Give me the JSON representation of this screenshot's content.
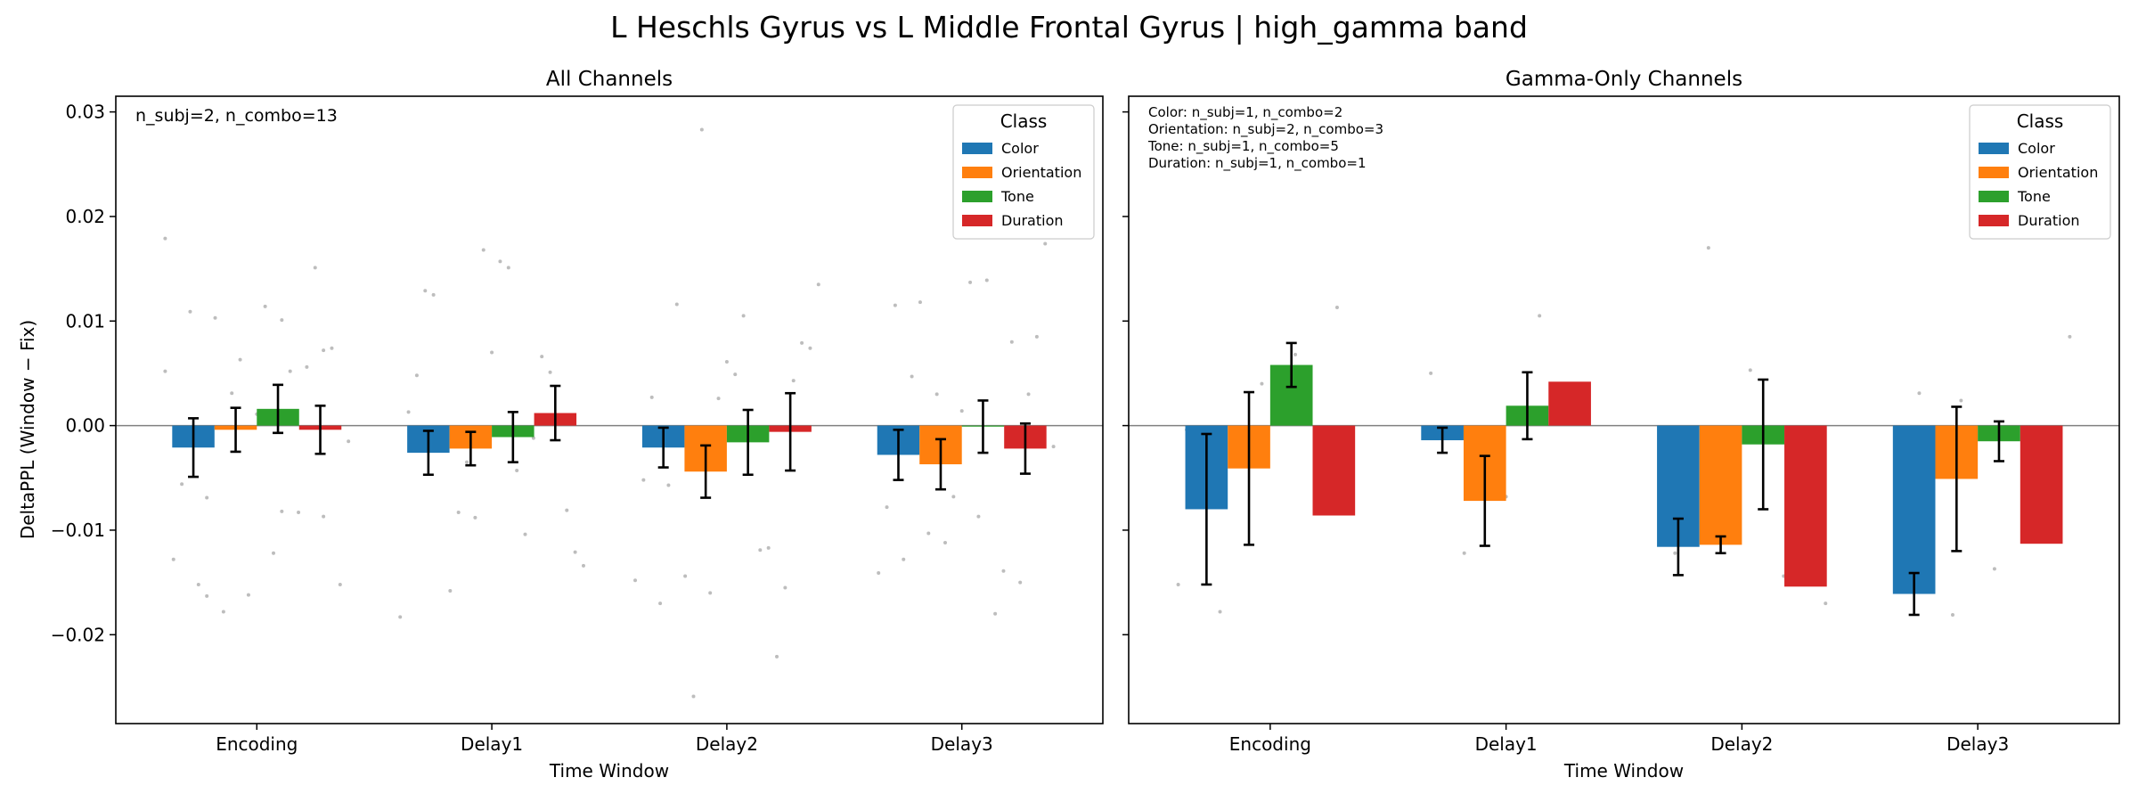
{
  "figure": {
    "suptitle": "L Heschls Gyrus vs L Middle Frontal Gyrus  |  high_gamma band",
    "ylabel": "DeltaPPL (Window − Fix)"
  },
  "chart_data": [
    {
      "type": "bar",
      "title": "All Channels",
      "xlabel": "Time Window",
      "ylabel": "DeltaPPL (Window − Fix)",
      "ylim": [
        -0.0285,
        0.0315
      ],
      "yticks": [
        -0.02,
        -0.01,
        0.0,
        0.01,
        0.02,
        0.03
      ],
      "ytick_labels": [
        "−0.02",
        "−0.01",
        "0.00",
        "0.01",
        "0.02",
        "0.03"
      ],
      "categories": [
        "Encoding",
        "Delay1",
        "Delay2",
        "Delay3"
      ],
      "grid": false,
      "zero_line": true,
      "legend_title": "Class",
      "legend_position": "top-right",
      "annotation": [
        "n_subj=2, n_combo=13"
      ],
      "series": [
        {
          "name": "Color",
          "color": "#1f77b4",
          "values": [
            -0.0021,
            -0.0026,
            -0.0021,
            -0.0028
          ],
          "errors": [
            0.0028,
            0.0021,
            0.0019,
            0.0024
          ]
        },
        {
          "name": "Orientation",
          "color": "#ff7f0e",
          "values": [
            -0.0004,
            -0.0022,
            -0.0044,
            -0.0037
          ],
          "errors": [
            0.0021,
            0.0016,
            0.0025,
            0.0024
          ]
        },
        {
          "name": "Tone",
          "color": "#2ca02c",
          "values": [
            0.0016,
            -0.0011,
            -0.0016,
            -0.0001
          ],
          "errors": [
            0.0023,
            0.0024,
            0.0031,
            0.0025
          ]
        },
        {
          "name": "Duration",
          "color": "#d62728",
          "values": [
            -0.0004,
            0.0012,
            -0.0006,
            -0.0022
          ],
          "errors": [
            0.0023,
            0.0026,
            0.0037,
            0.0024
          ]
        }
      ],
      "scatter_points": [
        [
          0,
          0.0179
        ],
        [
          0,
          0.0101
        ],
        [
          0,
          -0.0069
        ],
        [
          0,
          -0.0087
        ],
        [
          0,
          -0.0162
        ],
        [
          0,
          -0.0128
        ],
        [
          0,
          0.0052
        ],
        [
          0,
          0.0103
        ],
        [
          0,
          0.0074
        ],
        [
          0,
          0.0011
        ],
        [
          0,
          -0.0056
        ],
        [
          0,
          -0.0083
        ],
        [
          0,
          -0.0178
        ],
        [
          0,
          -0.0152
        ],
        [
          0,
          0.0114
        ],
        [
          0,
          0.0109
        ],
        [
          0,
          0.0056
        ],
        [
          0,
          0.0031
        ],
        [
          0,
          -0.0015
        ],
        [
          0,
          -0.0122
        ],
        [
          0,
          -0.0152
        ],
        [
          0,
          0.0151
        ],
        [
          0,
          0.0063
        ],
        [
          0,
          0.0052
        ],
        [
          0,
          -0.0082
        ],
        [
          0,
          -0.0163
        ],
        [
          0,
          0.0072
        ],
        [
          1,
          0.0168
        ],
        [
          1,
          0.0013
        ],
        [
          1,
          -0.0104
        ],
        [
          1,
          -0.0158
        ],
        [
          1,
          -0.0081
        ],
        [
          1,
          0.007
        ],
        [
          1,
          0.0048
        ],
        [
          1,
          -0.0012
        ],
        [
          1,
          -0.0083
        ],
        [
          1,
          -0.0121
        ],
        [
          1,
          0.0157
        ],
        [
          1,
          0.0129
        ],
        [
          1,
          0.0066
        ],
        [
          1,
          -0.0035
        ],
        [
          1,
          -0.0134
        ],
        [
          1,
          0.0151
        ],
        [
          1,
          0.0125
        ],
        [
          1,
          0.0051
        ],
        [
          1,
          -0.0088
        ],
        [
          1,
          -0.0183
        ],
        [
          1,
          -0.0043
        ],
        [
          2,
          0.0116
        ],
        [
          2,
          0.0043
        ],
        [
          2,
          0.0026
        ],
        [
          2,
          -0.0052
        ],
        [
          2,
          -0.0119
        ],
        [
          2,
          -0.0144
        ],
        [
          2,
          0.0079
        ],
        [
          2,
          0.0061
        ],
        [
          2,
          0.0027
        ],
        [
          2,
          -0.0117
        ],
        [
          2,
          -0.0259
        ],
        [
          2,
          0.0074
        ],
        [
          2,
          0.0049
        ],
        [
          2,
          -0.017
        ],
        [
          2,
          -0.0221
        ],
        [
          2,
          0.0283
        ],
        [
          2,
          0.0135
        ],
        [
          2,
          0.0105
        ],
        [
          2,
          -0.0057
        ],
        [
          2,
          -0.0155
        ],
        [
          2,
          -0.016
        ],
        [
          2,
          -0.0148
        ],
        [
          3,
          0.0139
        ],
        [
          3,
          0.0047
        ],
        [
          3,
          0.003
        ],
        [
          3,
          -0.0068
        ],
        [
          3,
          -0.0141
        ],
        [
          3,
          -0.018
        ],
        [
          3,
          0.0118
        ],
        [
          3,
          0.0085
        ],
        [
          3,
          0.0014
        ],
        [
          3,
          -0.0078
        ],
        [
          3,
          -0.0139
        ],
        [
          3,
          -0.0103
        ],
        [
          3,
          0.0174
        ],
        [
          3,
          0.0137
        ],
        [
          3,
          0.0115
        ],
        [
          3,
          0.008
        ],
        [
          3,
          0.003
        ],
        [
          3,
          -0.002
        ],
        [
          3,
          -0.0087
        ],
        [
          3,
          -0.0128
        ],
        [
          3,
          -0.015
        ],
        [
          3,
          -0.0112
        ]
      ]
    },
    {
      "type": "bar",
      "title": "Gamma-Only Channels",
      "xlabel": "Time Window",
      "ylim": [
        -0.0285,
        0.0315
      ],
      "categories": [
        "Encoding",
        "Delay1",
        "Delay2",
        "Delay3"
      ],
      "grid": false,
      "zero_line": true,
      "legend_title": "Class",
      "legend_position": "top-right",
      "annotation": [
        "Color: n_subj=1, n_combo=2",
        "Orientation: n_subj=2, n_combo=3",
        "Tone: n_subj=1, n_combo=5",
        "Duration: n_subj=1, n_combo=1"
      ],
      "series": [
        {
          "name": "Color",
          "color": "#1f77b4",
          "values": [
            -0.008,
            -0.0014,
            -0.0116,
            -0.0161
          ],
          "errors": [
            0.0072,
            0.0012,
            0.0027,
            0.002
          ]
        },
        {
          "name": "Orientation",
          "color": "#ff7f0e",
          "values": [
            -0.0041,
            -0.0072,
            -0.0114,
            -0.0051
          ],
          "errors": [
            0.0073,
            0.0043,
            0.0008,
            0.0069
          ]
        },
        {
          "name": "Tone",
          "color": "#2ca02c",
          "values": [
            0.0058,
            0.0019,
            -0.0018,
            -0.0015
          ],
          "errors": [
            0.0021,
            0.0032,
            0.0062,
            0.0019
          ]
        },
        {
          "name": "Duration",
          "color": "#d62728",
          "values": [
            -0.0086,
            0.0042,
            -0.0154,
            -0.0113
          ],
          "errors": [
            0,
            0,
            0,
            0
          ]
        }
      ],
      "scatter_points": [
        [
          0,
          -0.0152
        ],
        [
          0,
          0.0068
        ],
        [
          0,
          -0.0178
        ],
        [
          0,
          0.0113
        ],
        [
          0,
          0.004
        ],
        [
          0,
          -0.0004
        ],
        [
          1,
          0.0105
        ],
        [
          1,
          -0.0122
        ],
        [
          1,
          0.0013
        ],
        [
          1,
          -0.0068
        ],
        [
          1,
          0.005
        ],
        [
          2,
          -0.0144
        ],
        [
          2,
          0.017
        ],
        [
          2,
          -0.017
        ],
        [
          2,
          0.0053
        ],
        [
          2,
          -0.0122
        ],
        [
          2,
          -0.013
        ],
        [
          3,
          -0.0181
        ],
        [
          3,
          0.0085
        ],
        [
          3,
          -0.0137
        ],
        [
          3,
          0.0031
        ],
        [
          3,
          -0.0074
        ],
        [
          3,
          0.0024
        ]
      ]
    }
  ]
}
